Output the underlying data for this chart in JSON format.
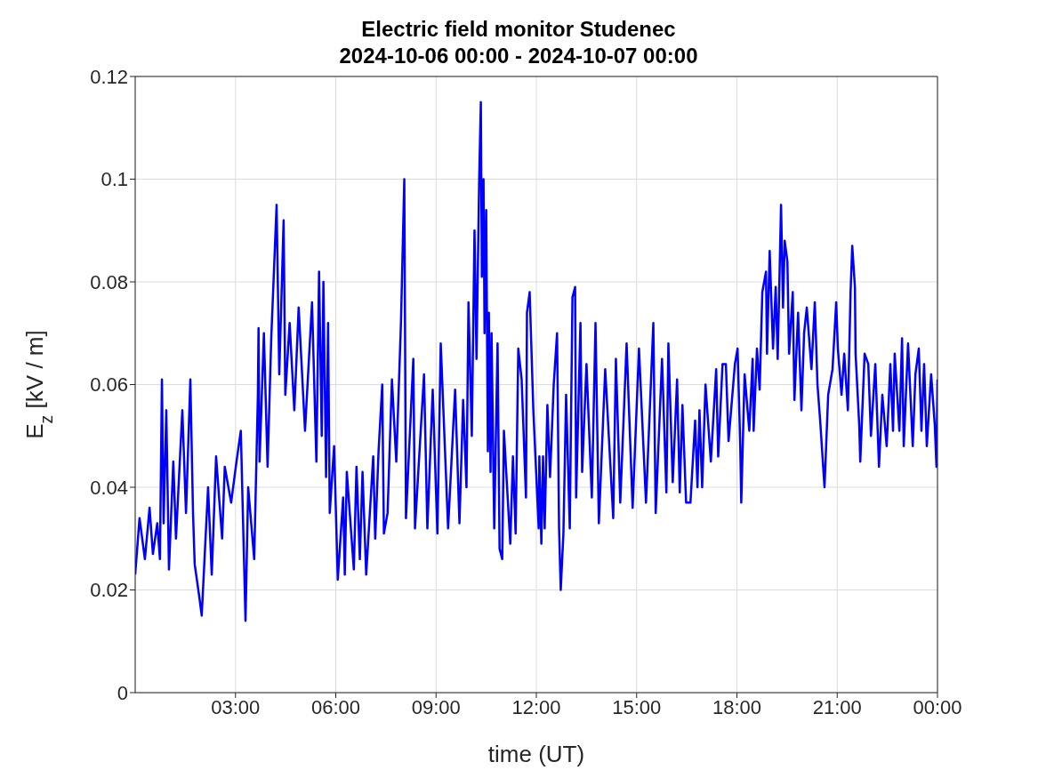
{
  "chart_data": {
    "type": "line",
    "title": "Electric field monitor Studenec",
    "subtitle": "2024-10-06 00:00 - 2024-10-07 00:00",
    "xlabel": "time (UT)",
    "ylabel": "E$_{z}$ [kV / m]",
    "xlim": [
      0,
      24
    ],
    "xticks": [
      {
        "value": 3,
        "label": "03:00"
      },
      {
        "value": 6,
        "label": "06:00"
      },
      {
        "value": 9,
        "label": "09:00"
      },
      {
        "value": 12,
        "label": "12:00"
      },
      {
        "value": 15,
        "label": "15:00"
      },
      {
        "value": 18,
        "label": "18:00"
      },
      {
        "value": 21,
        "label": "21:00"
      },
      {
        "value": 24,
        "label": "00:00"
      }
    ],
    "ylim": [
      0,
      0.12
    ],
    "yticks": [
      0,
      0.02,
      0.04,
      0.06,
      0.08,
      0.1,
      0.12
    ],
    "grid": true,
    "legend": false,
    "marker": "none",
    "line_style": "solid",
    "x": [
      0.0,
      0.13,
      0.29,
      0.43,
      0.53,
      0.66,
      0.74,
      0.8,
      0.85,
      0.93,
      1.01,
      1.14,
      1.22,
      1.41,
      1.52,
      1.65,
      1.73,
      1.78,
      1.91,
      1.99,
      2.18,
      2.29,
      2.42,
      2.6,
      2.68,
      2.87,
      3.03,
      3.16,
      3.22,
      3.3,
      3.38,
      3.56,
      3.67,
      3.69,
      3.72,
      3.85,
      3.96,
      4.07,
      4.23,
      4.31,
      4.44,
      4.49,
      4.62,
      4.76,
      4.89,
      5.08,
      5.29,
      5.42,
      5.5,
      5.58,
      5.63,
      5.71,
      5.77,
      5.82,
      5.95,
      6.06,
      6.22,
      6.27,
      6.33,
      6.54,
      6.62,
      6.72,
      6.8,
      6.91,
      7.12,
      7.18,
      7.28,
      7.39,
      7.44,
      7.55,
      7.68,
      7.81,
      7.95,
      8.05,
      8.1,
      8.32,
      8.37,
      8.64,
      8.74,
      8.9,
      9.04,
      9.14,
      9.36,
      9.57,
      9.7,
      9.81,
      9.91,
      9.97,
      10.07,
      10.15,
      10.21,
      10.29,
      10.34,
      10.37,
      10.42,
      10.45,
      10.5,
      10.55,
      10.58,
      10.63,
      10.66,
      10.74,
      10.84,
      10.9,
      10.98,
      11.03,
      11.22,
      11.3,
      11.38,
      11.46,
      11.56,
      11.69,
      11.72,
      11.8,
      11.91,
      12.07,
      12.09,
      12.15,
      12.2,
      12.25,
      12.33,
      12.41,
      12.52,
      12.62,
      12.68,
      12.73,
      12.81,
      12.89,
      13.0,
      13.08,
      13.16,
      13.19,
      13.32,
      13.37,
      13.5,
      13.66,
      13.77,
      13.87,
      14.06,
      14.3,
      14.38,
      14.51,
      14.7,
      14.88,
      15.07,
      15.28,
      15.5,
      15.57,
      15.76,
      15.89,
      15.95,
      16.08,
      16.21,
      16.29,
      16.37,
      16.48,
      16.61,
      16.75,
      16.82,
      16.88,
      16.96,
      17.06,
      17.22,
      17.38,
      17.44,
      17.57,
      17.67,
      17.75,
      17.94,
      18.02,
      18.1,
      18.13,
      18.23,
      18.37,
      18.47,
      18.5,
      18.6,
      18.68,
      18.76,
      18.87,
      18.9,
      18.98,
      19.08,
      19.16,
      19.22,
      19.32,
      19.38,
      19.43,
      19.51,
      19.56,
      19.67,
      19.72,
      19.83,
      19.93,
      20.01,
      20.09,
      20.23,
      20.33,
      20.41,
      20.49,
      20.62,
      20.73,
      20.86,
      20.97,
      21.02,
      21.13,
      21.21,
      21.32,
      21.4,
      21.45,
      21.53,
      21.55,
      21.66,
      21.69,
      21.82,
      21.93,
      22.01,
      22.14,
      22.25,
      22.35,
      22.48,
      22.59,
      22.67,
      22.72,
      22.86,
      22.94,
      22.99,
      23.12,
      23.26,
      23.34,
      23.44,
      23.52,
      23.6,
      23.68,
      23.81,
      23.92,
      23.97,
      24.0
    ],
    "series": [
      {
        "color": "#0000ff",
        "values": [
          0.023,
          0.034,
          0.026,
          0.036,
          0.027,
          0.033,
          0.026,
          0.061,
          0.033,
          0.055,
          0.024,
          0.045,
          0.03,
          0.055,
          0.035,
          0.061,
          0.035,
          0.025,
          0.019,
          0.015,
          0.04,
          0.023,
          0.046,
          0.03,
          0.044,
          0.037,
          0.045,
          0.051,
          0.035,
          0.014,
          0.04,
          0.026,
          0.058,
          0.071,
          0.045,
          0.07,
          0.044,
          0.069,
          0.095,
          0.062,
          0.092,
          0.058,
          0.072,
          0.055,
          0.075,
          0.051,
          0.076,
          0.045,
          0.082,
          0.05,
          0.08,
          0.042,
          0.072,
          0.035,
          0.048,
          0.022,
          0.038,
          0.023,
          0.043,
          0.024,
          0.044,
          0.026,
          0.043,
          0.023,
          0.046,
          0.03,
          0.047,
          0.06,
          0.031,
          0.035,
          0.061,
          0.045,
          0.072,
          0.1,
          0.034,
          0.065,
          0.032,
          0.062,
          0.032,
          0.059,
          0.031,
          0.068,
          0.032,
          0.059,
          0.033,
          0.057,
          0.04,
          0.076,
          0.05,
          0.09,
          0.065,
          0.1,
          0.115,
          0.081,
          0.1,
          0.07,
          0.094,
          0.047,
          0.074,
          0.043,
          0.07,
          0.032,
          0.068,
          0.028,
          0.026,
          0.051,
          0.029,
          0.046,
          0.031,
          0.067,
          0.061,
          0.038,
          0.074,
          0.078,
          0.055,
          0.032,
          0.046,
          0.029,
          0.046,
          0.032,
          0.056,
          0.042,
          0.06,
          0.07,
          0.032,
          0.02,
          0.031,
          0.058,
          0.032,
          0.077,
          0.079,
          0.038,
          0.072,
          0.043,
          0.064,
          0.038,
          0.072,
          0.033,
          0.063,
          0.034,
          0.065,
          0.037,
          0.068,
          0.036,
          0.067,
          0.037,
          0.072,
          0.035,
          0.065,
          0.039,
          0.068,
          0.041,
          0.061,
          0.039,
          0.056,
          0.037,
          0.037,
          0.053,
          0.04,
          0.055,
          0.04,
          0.06,
          0.045,
          0.063,
          0.046,
          0.064,
          0.064,
          0.049,
          0.064,
          0.067,
          0.048,
          0.037,
          0.062,
          0.051,
          0.065,
          0.051,
          0.067,
          0.059,
          0.078,
          0.082,
          0.066,
          0.086,
          0.067,
          0.079,
          0.065,
          0.095,
          0.075,
          0.088,
          0.084,
          0.066,
          0.078,
          0.057,
          0.074,
          0.055,
          0.07,
          0.075,
          0.063,
          0.076,
          0.06,
          0.053,
          0.04,
          0.058,
          0.063,
          0.076,
          0.067,
          0.058,
          0.066,
          0.055,
          0.078,
          0.087,
          0.079,
          0.066,
          0.052,
          0.045,
          0.066,
          0.064,
          0.05,
          0.064,
          0.044,
          0.058,
          0.048,
          0.064,
          0.051,
          0.066,
          0.051,
          0.069,
          0.048,
          0.068,
          0.048,
          0.062,
          0.067,
          0.051,
          0.064,
          0.048,
          0.062,
          0.052,
          0.044,
          0.061
        ]
      }
    ]
  }
}
